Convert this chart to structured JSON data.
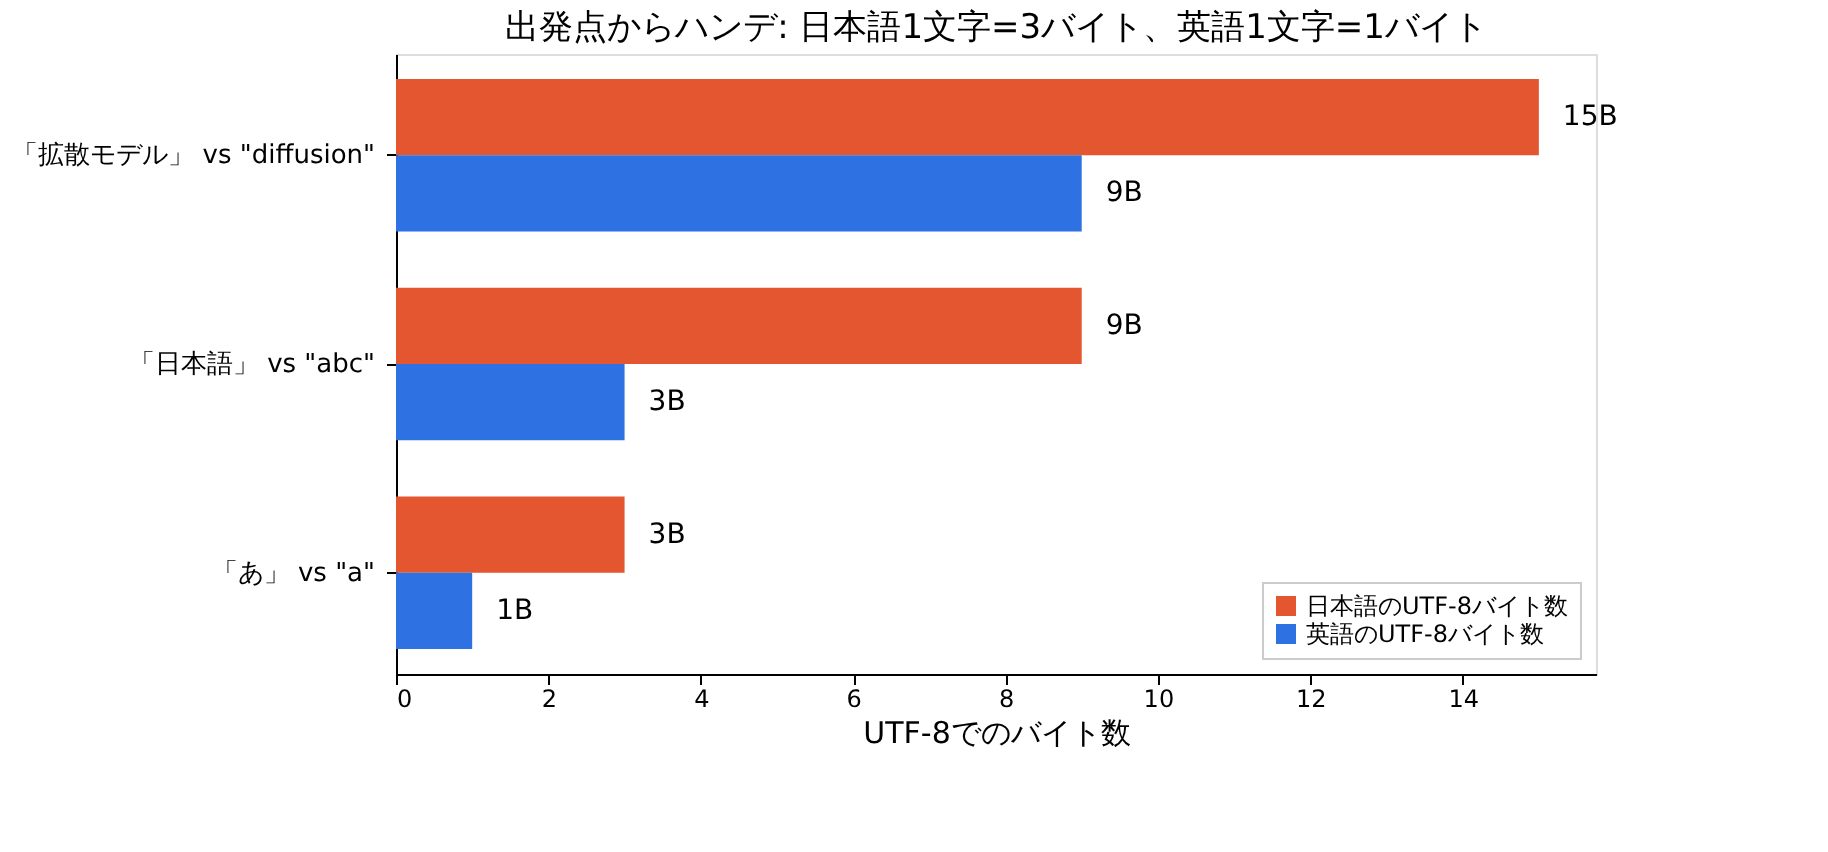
{
  "chart_data": {
    "type": "bar",
    "orientation": "horizontal",
    "title": "出発点からハンデ: 日本語1文字=3バイト、英語1文字=1バイト",
    "xlabel": "UTF-8でのバイト数",
    "categories": [
      "「拡散モデル」 vs \"diffusion\"",
      "「日本語」 vs \"abc\"",
      "「あ」 vs \"a\""
    ],
    "series": [
      {
        "name": "日本語のUTF-8バイト数",
        "color": "#e3562f",
        "values": [
          15,
          9,
          3
        ],
        "value_labels": [
          "15B",
          "9B",
          "3B"
        ]
      },
      {
        "name": "英語のUTF-8バイト数",
        "color": "#2d71e3",
        "values": [
          9,
          3,
          1
        ],
        "value_labels": [
          "9B",
          "3B",
          "1B"
        ]
      }
    ],
    "xlim": [
      0,
      15.75
    ],
    "xticks": [
      0,
      2,
      4,
      6,
      8,
      10,
      12,
      14
    ],
    "grid": false,
    "legend": "bottom right"
  }
}
